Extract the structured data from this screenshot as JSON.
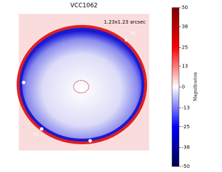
{
  "chart_data": {
    "type": "heatmap",
    "title": "VCC1062",
    "annotation": "1.23x1.23 arcsec",
    "image_labels": [
      "M1",
      "M2"
    ],
    "colorbar": {
      "label": "Magnification",
      "lim": [
        -50,
        50
      ],
      "ticks": [
        50,
        38,
        25,
        13,
        0,
        -13,
        -25,
        -38,
        -50
      ]
    }
  }
}
